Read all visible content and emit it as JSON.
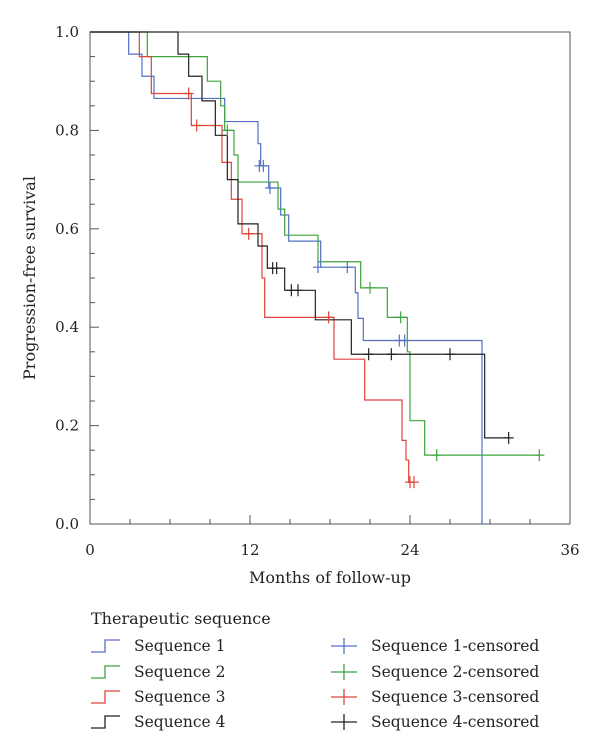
{
  "chart_data": {
    "type": "line",
    "step": true,
    "xlabel": "Months of follow-up",
    "ylabel": "Progression-free survival",
    "xlim": [
      0,
      36
    ],
    "ylim": [
      0,
      1.0
    ],
    "xticks": [
      0,
      12,
      24,
      36
    ],
    "xtick_labels": [
      "0",
      "12",
      "24",
      "36"
    ],
    "yticks": [
      0.0,
      0.2,
      0.4,
      0.6,
      0.8,
      1.0
    ],
    "ytick_labels": [
      "0.0",
      "0.2",
      "0.4",
      "0.6",
      "0.8",
      "1.0"
    ],
    "grid": false,
    "legend": {
      "title": "Therapeutic sequence",
      "placement": "bottom",
      "columns": 2
    },
    "series": [
      {
        "name": "Sequence 1",
        "color": "#5470c6",
        "steps": [
          [
            0,
            1.0
          ],
          [
            2.9,
            0.955
          ],
          [
            3.9,
            0.91
          ],
          [
            4.8,
            0.865
          ],
          [
            10.1,
            0.818
          ],
          [
            12.6,
            0.773
          ],
          [
            12.8,
            0.728
          ],
          [
            13.4,
            0.683
          ],
          [
            14.3,
            0.628
          ],
          [
            14.9,
            0.575
          ],
          [
            17.3,
            0.522
          ],
          [
            19.9,
            0.47
          ],
          [
            20.1,
            0.418
          ],
          [
            20.5,
            0.373
          ],
          [
            29.4,
            0.186
          ],
          [
            29.4,
            0.0
          ]
        ],
        "end": 29.6
      },
      {
        "name": "Sequence 2",
        "color": "#3fa33f",
        "steps": [
          [
            0,
            1.0
          ],
          [
            4.3,
            0.95
          ],
          [
            8.8,
            0.9
          ],
          [
            9.8,
            0.85
          ],
          [
            10.1,
            0.8
          ],
          [
            10.8,
            0.75
          ],
          [
            11.1,
            0.695
          ],
          [
            14.1,
            0.64
          ],
          [
            14.6,
            0.587
          ],
          [
            17.1,
            0.533
          ],
          [
            20.3,
            0.48
          ],
          [
            22.3,
            0.42
          ],
          [
            23.8,
            0.35
          ],
          [
            24.0,
            0.21
          ],
          [
            25.1,
            0.14
          ]
        ],
        "end": 33.7
      },
      {
        "name": "Sequence 3",
        "color": "#e0443a",
        "steps": [
          [
            0,
            1.0
          ],
          [
            3.7,
            0.95
          ],
          [
            4.6,
            0.875
          ],
          [
            7.6,
            0.81
          ],
          [
            9.9,
            0.735
          ],
          [
            10.6,
            0.66
          ],
          [
            11.4,
            0.59
          ],
          [
            12.9,
            0.5
          ],
          [
            13.1,
            0.42
          ],
          [
            17.8,
            0.42
          ],
          [
            18.3,
            0.335
          ],
          [
            20.6,
            0.252
          ],
          [
            23.4,
            0.17
          ],
          [
            23.7,
            0.13
          ],
          [
            23.9,
            0.085
          ]
        ],
        "end": 24.3
      },
      {
        "name": "Sequence 4",
        "color": "#222222",
        "steps": [
          [
            0,
            1.0
          ],
          [
            6.6,
            0.955
          ],
          [
            7.4,
            0.91
          ],
          [
            8.4,
            0.86
          ],
          [
            9.4,
            0.79
          ],
          [
            10.3,
            0.7
          ],
          [
            11.1,
            0.61
          ],
          [
            12.6,
            0.565
          ],
          [
            13.3,
            0.52
          ],
          [
            14.6,
            0.475
          ],
          [
            16.9,
            0.415
          ],
          [
            19.6,
            0.345
          ],
          [
            29.4,
            0.345
          ],
          [
            29.6,
            0.175
          ]
        ],
        "end": 31.4
      }
    ],
    "censored": [
      {
        "name": "Sequence 1-censored",
        "color": "#5470c6",
        "points": [
          [
            12.7,
            0.728
          ],
          [
            13.0,
            0.728
          ],
          [
            13.5,
            0.683
          ],
          [
            17.1,
            0.522
          ],
          [
            19.3,
            0.522
          ],
          [
            23.2,
            0.373
          ],
          [
            23.6,
            0.373
          ]
        ]
      },
      {
        "name": "Sequence 2-censored",
        "color": "#3fa33f",
        "points": [
          [
            10.3,
            0.8
          ],
          [
            21.0,
            0.48
          ],
          [
            23.3,
            0.42
          ],
          [
            26.0,
            0.14
          ],
          [
            33.7,
            0.14
          ]
        ]
      },
      {
        "name": "Sequence 3-censored",
        "color": "#e0443a",
        "points": [
          [
            7.4,
            0.875
          ],
          [
            8.0,
            0.81
          ],
          [
            11.9,
            0.59
          ],
          [
            17.9,
            0.42
          ],
          [
            24.0,
            0.085
          ],
          [
            24.3,
            0.085
          ]
        ]
      },
      {
        "name": "Sequence 4-censored",
        "color": "#222222",
        "points": [
          [
            13.7,
            0.52
          ],
          [
            14.0,
            0.52
          ],
          [
            15.1,
            0.475
          ],
          [
            15.6,
            0.475
          ],
          [
            20.9,
            0.345
          ],
          [
            22.6,
            0.345
          ],
          [
            27.0,
            0.345
          ],
          [
            31.4,
            0.175
          ]
        ]
      }
    ]
  }
}
